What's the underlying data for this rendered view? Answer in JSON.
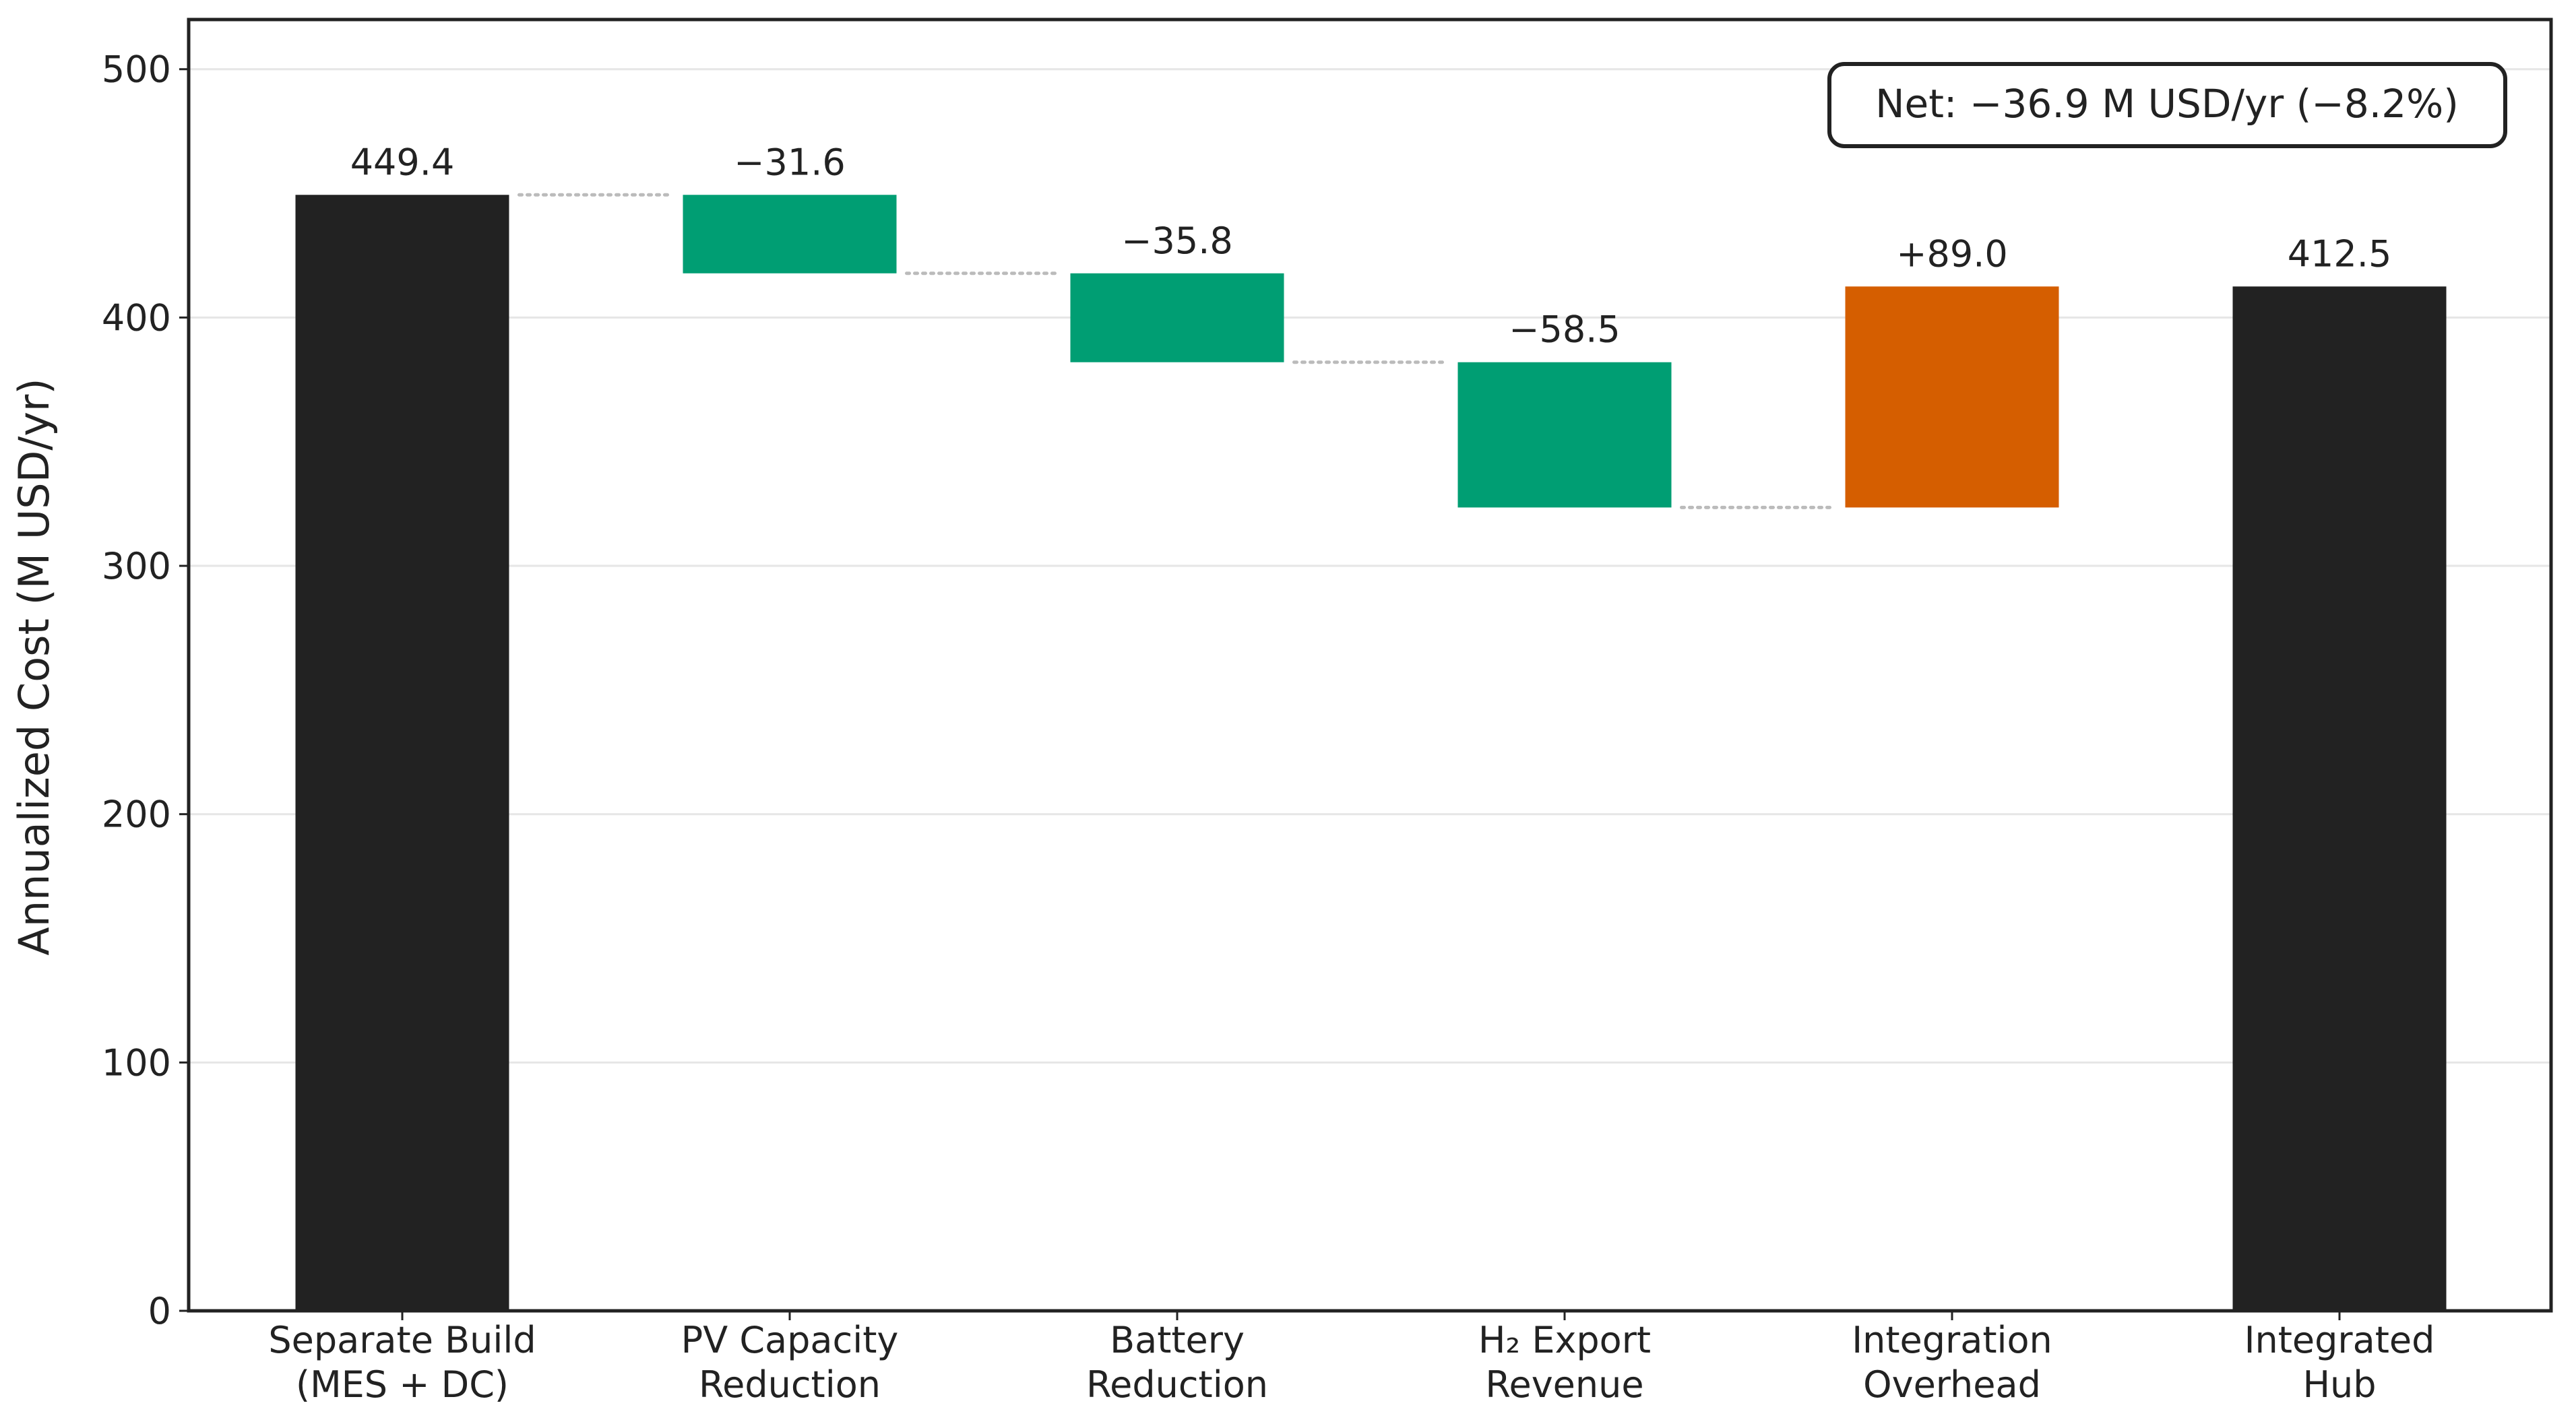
{
  "chart_data": {
    "type": "waterfall",
    "y_label": "Annualized Cost (M USD/yr)",
    "annotation": "Net: −36.9 M USD/yr (−8.2%)",
    "categories": [
      "Separate Build\n(MES + DC)",
      "PV Capacity\nReduction",
      "Battery\nReduction",
      "H₂ Export\nRevenue",
      "Integration\nOverhead",
      "Integrated\nHub"
    ],
    "values": [
      449.4,
      -31.6,
      -35.8,
      -58.5,
      89.0,
      412.5
    ],
    "value_labels": [
      "449.4",
      "−31.6",
      "−35.8",
      "−58.5",
      "+89.0",
      "412.5"
    ],
    "kinds": [
      "total",
      "delta",
      "delta",
      "delta",
      "delta",
      "total"
    ],
    "colors": {
      "total": "#222222",
      "decrease": "#009e73",
      "increase": "#d55e00"
    },
    "ylim": [
      0,
      520
    ],
    "yticks": [
      0,
      100,
      200,
      300,
      400,
      500
    ],
    "grid": true
  }
}
